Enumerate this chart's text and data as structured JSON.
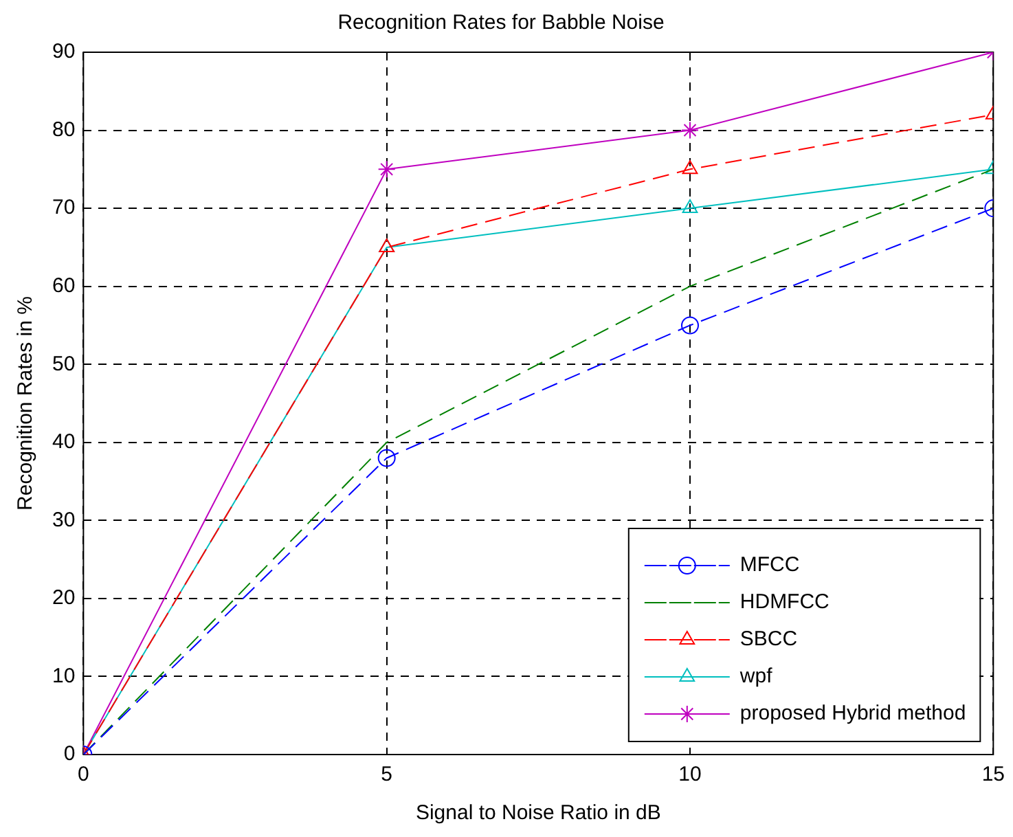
{
  "chart_data": {
    "type": "line",
    "title": "Recognition Rates for Babble Noise",
    "xlabel": "Signal to Noise Ratio in dB",
    "ylabel": "Recognition Rates in %",
    "x": [
      0,
      5,
      10,
      15
    ],
    "series": [
      {
        "name": "MFCC",
        "color": "#0000ff",
        "values": [
          0,
          38,
          55,
          70
        ],
        "marker": "circle",
        "line_style": "dashed"
      },
      {
        "name": "HDMFCC",
        "color": "#008000",
        "values": [
          0,
          40,
          60,
          75
        ],
        "marker": "none",
        "line_style": "dashed"
      },
      {
        "name": "SBCC",
        "color": "#ff0000",
        "values": [
          0,
          65,
          75,
          82
        ],
        "marker": "triangle",
        "line_style": "dashed"
      },
      {
        "name": "wpf",
        "color": "#00bfbf",
        "values": [
          0,
          65,
          70,
          75
        ],
        "marker": "triangle",
        "line_style": "solid"
      },
      {
        "name": "proposed Hybrid method",
        "color": "#bf00bf",
        "values": [
          0,
          75,
          80,
          90
        ],
        "marker": "cross",
        "line_style": "solid"
      }
    ],
    "xlim": [
      0,
      15
    ],
    "xticks": [
      0,
      5,
      10,
      15
    ],
    "ylim": [
      0,
      90
    ],
    "yticks": [
      0,
      10,
      20,
      30,
      40,
      50,
      60,
      70,
      80,
      90
    ],
    "grid": true,
    "legend": "bottom right"
  }
}
